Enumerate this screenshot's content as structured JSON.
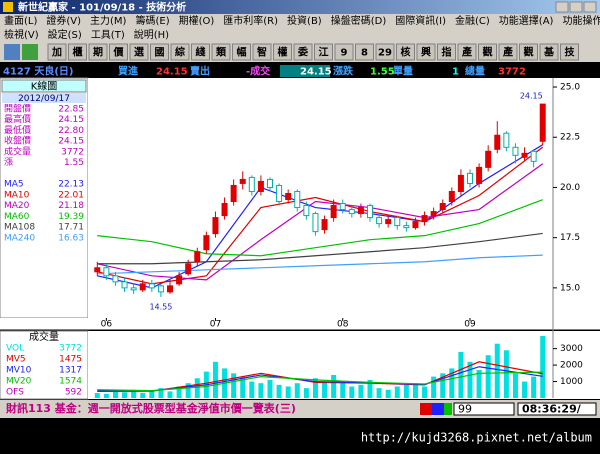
{
  "window": {
    "title": "新世紀贏家 - 101/09/18 - 技術分析"
  },
  "menu": {
    "row1": [
      "畫面(L)",
      "證券(V)",
      "主力(M)",
      "籌碼(E)",
      "期權(O)",
      "匯市利率(R)",
      "投資(B)",
      "操盤密碼(D)",
      "國際資訊(I)",
      "金融(C)",
      "功能選擇(A)",
      "功能操作(F)"
    ],
    "row2": [
      "檢視(V)",
      "設定(S)",
      "工具(T)",
      "說明(H)"
    ]
  },
  "toolbar": [
    "加",
    "櫃",
    "期",
    "價",
    "選",
    "國",
    "綜",
    "綫",
    "類",
    "幅",
    "智",
    "權",
    "委",
    "江",
    "9",
    "8",
    "29",
    "核",
    "興",
    "指",
    "產",
    "觀",
    "產",
    "觀",
    "基",
    "技"
  ],
  "quote": {
    "symbol": "4127 天良(日)",
    "bid_label": "買進",
    "bid": "24.15",
    "ask_label": "賣出",
    "last_label": "-成交",
    "last": "24.15",
    "change_label": "漲跌",
    "change": "1.55",
    "tick_vol_label": "單量",
    "tick_vol": "1",
    "total_vol_label": "總量",
    "total_vol": "3772"
  },
  "side_panel": {
    "header": "K線圖",
    "date": "2012/09/17",
    "rows": [
      [
        "開盤價",
        "22.85"
      ],
      [
        "最高價",
        "24.15"
      ],
      [
        "最低價",
        "22.80"
      ],
      [
        "收盤價",
        "24.15"
      ],
      [
        "成交量",
        "3772"
      ],
      [
        "漲",
        "1.55"
      ]
    ],
    "ma_values": [
      "22.13",
      "22.01",
      "21.18",
      "19.39",
      "17.71",
      "16.63"
    ]
  },
  "volume_panel": {
    "header": "成交量",
    "values": [
      "3772",
      "1475",
      "1317",
      "1574",
      "592"
    ],
    "ofs_label": "OFS"
  },
  "chart_data": [
    {
      "type": "candlestick",
      "up_color": "#e00000",
      "down_color": "#00b0b0",
      "open": [
        15.8,
        16.0,
        15.6,
        15.3,
        15.0,
        14.9,
        15.2,
        15.1,
        14.8,
        15.2,
        15.7,
        16.3,
        16.9,
        17.7,
        18.6,
        19.3,
        20.2,
        20.5,
        19.8,
        20.4,
        20.1,
        19.4,
        19.8,
        19.1,
        18.7,
        17.9,
        18.5,
        19.2,
        18.9,
        18.7,
        19.1,
        18.5,
        18.2,
        18.5,
        18.1,
        18.0,
        18.3,
        18.6,
        18.9,
        19.3,
        19.8,
        20.7,
        20.2,
        21.0,
        21.9,
        22.7,
        22.0,
        21.5,
        21.8,
        22.3
      ],
      "high": [
        16.3,
        16.2,
        15.8,
        15.5,
        15.2,
        15.4,
        15.4,
        15.2,
        15.4,
        15.8,
        16.4,
        17.0,
        17.8,
        18.8,
        19.5,
        20.4,
        20.8,
        20.6,
        20.6,
        20.5,
        20.2,
        19.9,
        19.9,
        19.3,
        18.8,
        18.6,
        19.4,
        19.4,
        19.1,
        19.2,
        19.2,
        18.7,
        18.6,
        18.6,
        18.3,
        18.5,
        18.8,
        19.0,
        19.4,
        20.0,
        20.9,
        20.9,
        21.2,
        22.1,
        23.3,
        22.8,
        22.2,
        22.0,
        21.9,
        24.15
      ],
      "low": [
        15.6,
        15.4,
        15.1,
        14.8,
        14.7,
        14.8,
        14.8,
        14.55,
        14.7,
        15.1,
        15.6,
        16.1,
        16.7,
        17.5,
        18.4,
        19.1,
        19.9,
        19.6,
        19.6,
        19.8,
        19.1,
        19.2,
        18.8,
        18.4,
        17.6,
        17.7,
        18.3,
        18.7,
        18.5,
        18.5,
        18.3,
        18.0,
        18.0,
        17.9,
        17.8,
        17.9,
        18.1,
        18.4,
        18.7,
        19.1,
        19.6,
        20.0,
        20.0,
        20.8,
        21.7,
        21.8,
        21.2,
        21.3,
        21.0,
        22.1
      ],
      "close": [
        16.0,
        15.6,
        15.3,
        15.0,
        14.9,
        15.2,
        15.0,
        14.8,
        15.1,
        15.6,
        16.2,
        16.8,
        17.6,
        18.5,
        19.2,
        20.1,
        20.4,
        19.8,
        20.3,
        20.0,
        19.3,
        19.7,
        19.0,
        18.6,
        17.8,
        18.4,
        19.1,
        18.9,
        18.7,
        19.0,
        18.5,
        18.2,
        18.4,
        18.1,
        18.0,
        18.3,
        18.6,
        18.8,
        19.2,
        19.8,
        20.6,
        20.2,
        21.0,
        21.8,
        22.6,
        22.0,
        21.6,
        21.7,
        21.3,
        24.15
      ],
      "series": [
        {
          "name": "MA5",
          "color": "#2020ff",
          "x": [
            0,
            6,
            12,
            18,
            24,
            30,
            36,
            42,
            49
          ],
          "values": [
            15.6,
            15.0,
            16.3,
            20.0,
            19.0,
            18.7,
            18.3,
            20.2,
            22.13
          ]
        },
        {
          "name": "MA10",
          "color": "#e00000",
          "x": [
            0,
            6,
            12,
            18,
            24,
            30,
            36,
            42,
            49
          ],
          "values": [
            15.8,
            15.2,
            15.6,
            19.0,
            19.5,
            18.8,
            18.3,
            19.6,
            22.01
          ]
        },
        {
          "name": "MA20",
          "color": "#c000c0",
          "x": [
            0,
            6,
            12,
            18,
            24,
            30,
            36,
            42,
            49
          ],
          "values": [
            16.2,
            15.6,
            15.4,
            17.4,
            19.3,
            19.0,
            18.5,
            18.9,
            21.18
          ]
        },
        {
          "name": "MA60",
          "color": "#00c000",
          "x": [
            0,
            6,
            12,
            18,
            24,
            30,
            36,
            42,
            49
          ],
          "values": [
            17.6,
            17.3,
            16.7,
            16.6,
            17.0,
            17.4,
            17.6,
            18.2,
            19.39
          ]
        },
        {
          "name": "MA108",
          "color": "#404040",
          "x": [
            0,
            6,
            12,
            18,
            24,
            30,
            36,
            42,
            49
          ],
          "values": [
            16.2,
            16.2,
            16.3,
            16.4,
            16.6,
            16.8,
            17.0,
            17.3,
            17.71
          ]
        },
        {
          "name": "MA240",
          "color": "#40a0ff",
          "x": [
            0,
            6,
            12,
            18,
            24,
            30,
            36,
            42,
            49
          ],
          "values": [
            15.7,
            15.8,
            15.9,
            16.0,
            16.1,
            16.2,
            16.3,
            16.5,
            16.63
          ]
        }
      ],
      "ylim": [
        13.5,
        25.45
      ],
      "yticks": [
        {
          "value": 25,
          "label": "25.0"
        },
        {
          "value": 22.5,
          "label": "22.5"
        },
        {
          "value": 20,
          "label": "20.0"
        },
        {
          "value": 17.5,
          "label": "17.5"
        },
        {
          "value": 15,
          "label": "15.0"
        }
      ],
      "xlim": [
        -0.8,
        49.8
      ],
      "xticks": [
        {
          "value": 1,
          "label": "06"
        },
        {
          "value": 13,
          "label": "07"
        },
        {
          "value": 27,
          "label": "08"
        },
        {
          "value": 41,
          "label": "09"
        }
      ]
    },
    {
      "type": "bar",
      "name": "VOL",
      "color": "#00e0e0",
      "values": [
        300,
        250,
        400,
        350,
        500,
        300,
        450,
        600,
        400,
        700,
        900,
        1200,
        1600,
        2200,
        1800,
        1500,
        1300,
        1000,
        900,
        1100,
        800,
        700,
        900,
        600,
        1200,
        1000,
        1400,
        900,
        700,
        800,
        1100,
        600,
        500,
        700,
        800,
        900,
        700,
        1300,
        1500,
        1800,
        2800,
        2200,
        1700,
        2600,
        3300,
        2900,
        1500,
        1000,
        1300,
        3772
      ],
      "series": [
        {
          "name": "MV5",
          "color": "#e00000",
          "x": [
            0,
            6,
            12,
            18,
            24,
            30,
            36,
            42,
            49
          ],
          "values": [
            400,
            420,
            900,
            1500,
            950,
            900,
            800,
            2200,
            1475
          ]
        },
        {
          "name": "MV10",
          "color": "#2020ff",
          "x": [
            0,
            6,
            12,
            18,
            24,
            30,
            36,
            42,
            49
          ],
          "values": [
            450,
            430,
            800,
            1400,
            1000,
            920,
            820,
            1900,
            1317
          ]
        },
        {
          "name": "MV20",
          "color": "#00c000",
          "x": [
            0,
            6,
            12,
            18,
            24,
            30,
            36,
            42,
            49
          ],
          "values": [
            500,
            450,
            700,
            1300,
            1100,
            950,
            850,
            1500,
            1574
          ]
        }
      ],
      "ylim": [
        0,
        3950
      ],
      "yticks": [
        1000,
        2000,
        3000
      ],
      "xlim": [
        -0.8,
        49.8
      ]
    }
  ],
  "status": {
    "news": "財訊113 基金：週一開放式股票型基金淨值市價一覽表(三)",
    "box": "99",
    "clock": "08:36:29/"
  },
  "url": "http://kujd3268.pixnet.net/album"
}
